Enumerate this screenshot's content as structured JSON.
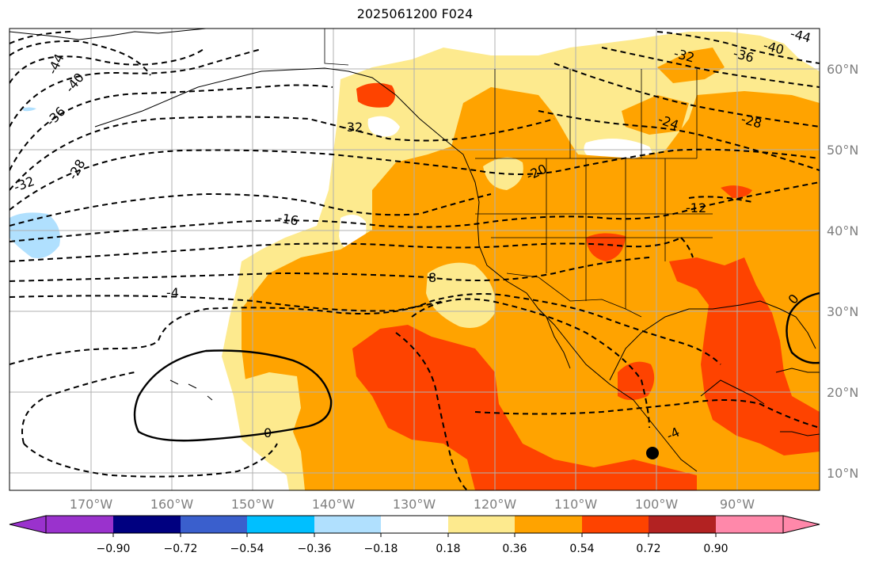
{
  "title": "2025061200 F024",
  "map": {
    "lon_ticks": [
      "170°W",
      "160°W",
      "150°W",
      "140°W",
      "130°W",
      "120°W",
      "110°W",
      "100°W",
      "90°W"
    ],
    "lat_ticks": [
      "60°N",
      "50°N",
      "40°N",
      "30°N",
      "20°N",
      "10°N"
    ],
    "contour_labels": [
      "-44",
      "-40",
      "-36",
      "-32",
      "-28",
      "-32",
      "-16",
      "-4",
      "0",
      "8",
      "-32",
      "-36",
      "-40",
      "-44",
      "-24",
      "-28",
      "-20",
      "-12",
      "-4",
      "0"
    ],
    "fill_colors": {
      "level_0_18_0_36": "#fdea8e",
      "level_0_36_0_54": "#ffa300",
      "level_0_54_0_72": "#fe4300",
      "level_neg_0_36_neg_0_18": "#b0e0fe"
    },
    "marker": "filled-circle"
  },
  "colorbar": {
    "tick_labels": [
      "−0.90",
      "−0.72",
      "−0.54",
      "−0.36",
      "−0.18",
      "0.18",
      "0.36",
      "0.54",
      "0.72",
      "0.90"
    ],
    "colors": [
      "#9a32cd",
      "#000080",
      "#3a5fcd",
      "#00bfff",
      "#b0e0fe",
      "#ffffff",
      "#fdea8e",
      "#ffa300",
      "#fe4300",
      "#b22222",
      "#ff88aa"
    ]
  }
}
